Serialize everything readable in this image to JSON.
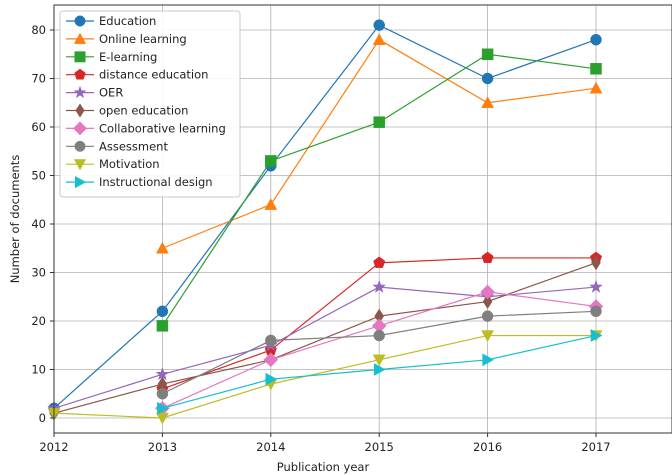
{
  "chart_data": {
    "type": "line",
    "title": "",
    "xlabel": "Publication year",
    "ylabel": "Number of documents",
    "x": [
      2012,
      2013,
      2014,
      2015,
      2016,
      2017
    ],
    "xticks": [
      "2012",
      "2013",
      "2014",
      "2015",
      "2016",
      "2017"
    ],
    "yticks": [
      "0",
      "10",
      "20",
      "30",
      "40",
      "50",
      "60",
      "70",
      "80"
    ],
    "xlim": [
      2012,
      2017.8
    ],
    "ylim": [
      -3,
      83
    ],
    "grid": true,
    "legend_position": "top-left",
    "series": [
      {
        "name": "Education",
        "color": "#1f77b4",
        "marker": "circle",
        "x": [
          2012,
          2013,
          2014,
          2015,
          2016,
          2017
        ],
        "values": [
          2,
          22,
          52,
          81,
          70,
          78
        ]
      },
      {
        "name": "Online learning",
        "color": "#ff7f0e",
        "marker": "triangle-up",
        "x": [
          2013,
          2014,
          2015,
          2016,
          2017
        ],
        "values": [
          35,
          44,
          78,
          65,
          68
        ]
      },
      {
        "name": "E-learning",
        "color": "#2ca02c",
        "marker": "square",
        "x": [
          2013,
          2014,
          2015,
          2016,
          2017
        ],
        "values": [
          19,
          53,
          61,
          75,
          72
        ]
      },
      {
        "name": "distance education",
        "color": "#d62728",
        "marker": "pentagon",
        "x": [
          2013,
          2014,
          2015,
          2016,
          2017
        ],
        "values": [
          6,
          14,
          32,
          33,
          33
        ]
      },
      {
        "name": "OER",
        "color": "#9467bd",
        "marker": "star",
        "x": [
          2012,
          2013,
          2014,
          2015,
          2016,
          2017
        ],
        "values": [
          2,
          9,
          15,
          27,
          25,
          27
        ]
      },
      {
        "name": "open education",
        "color": "#8c564b",
        "marker": "diamond-thin",
        "x": [
          2012,
          2013,
          2014,
          2015,
          2016,
          2017
        ],
        "values": [
          1,
          7,
          12,
          21,
          24,
          32
        ]
      },
      {
        "name": "Collaborative learning",
        "color": "#e377c2",
        "marker": "diamond",
        "x": [
          2013,
          2014,
          2015,
          2016,
          2017
        ],
        "values": [
          2,
          12,
          19,
          26,
          23
        ]
      },
      {
        "name": "Assessment",
        "color": "#7f7f7f",
        "marker": "circle",
        "x": [
          2013,
          2014,
          2015,
          2016,
          2017
        ],
        "values": [
          5,
          16,
          17,
          21,
          22
        ]
      },
      {
        "name": "Motivation",
        "color": "#bcbd22",
        "marker": "triangle-down",
        "x": [
          2012,
          2013,
          2014,
          2015,
          2016,
          2017
        ],
        "values": [
          1,
          0,
          7,
          12,
          17,
          17
        ]
      },
      {
        "name": "Instructional design",
        "color": "#17becf",
        "marker": "triangle-right",
        "x": [
          2013,
          2014,
          2015,
          2016,
          2017
        ],
        "values": [
          2,
          8,
          10,
          12,
          17
        ]
      }
    ]
  }
}
